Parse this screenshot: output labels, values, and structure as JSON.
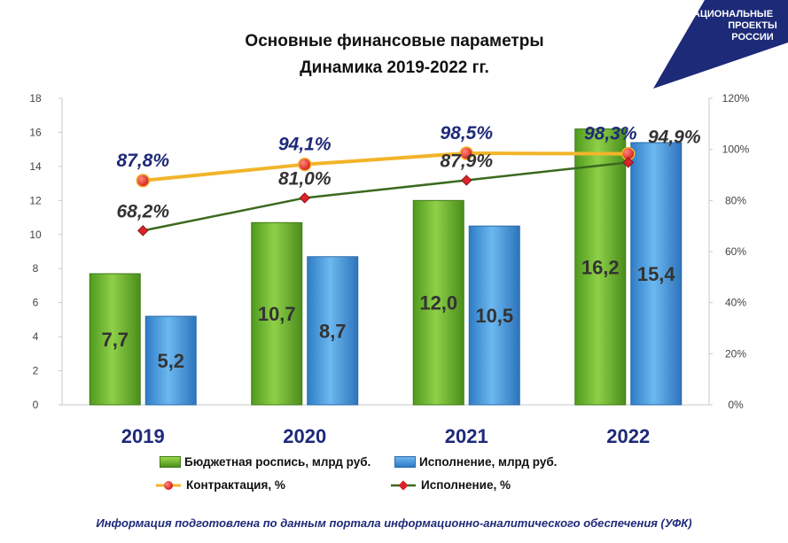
{
  "header": {
    "title_line1": "Основные финансовые параметры",
    "title_line2": "Динамика 2019-2022 гг."
  },
  "logo": {
    "line1": "НАЦИОНАЛЬНЫЕ",
    "line2": "ПРОЕКТЫ",
    "line3": "РОССИИ",
    "color": "#1c2a78"
  },
  "chart_data": {
    "type": "bar",
    "categories": [
      "2019",
      "2020",
      "2021",
      "2022"
    ],
    "left_axis": {
      "min": 0,
      "max": 18,
      "step": 2,
      "ticks": [
        "0",
        "2",
        "4",
        "6",
        "8",
        "10",
        "12",
        "14",
        "16",
        "18"
      ]
    },
    "right_axis": {
      "min": 0,
      "max": 120,
      "step": 20,
      "ticks": [
        "0%",
        "20%",
        "40%",
        "60%",
        "80%",
        "100%",
        "120%"
      ]
    },
    "bar_series": [
      {
        "name": "Бюджетная роспись, млрд руб.",
        "values": [
          7.7,
          10.7,
          12.0,
          16.2
        ],
        "labels": [
          "7,7",
          "10,7",
          "12,0",
          "16,2"
        ],
        "color": "#6cb52d"
      },
      {
        "name": "Исполнение, млрд руб.",
        "values": [
          5.2,
          8.7,
          10.5,
          15.4
        ],
        "labels": [
          "5,2",
          "8,7",
          "10,5",
          "15,4"
        ],
        "color": "#3d8fd8"
      }
    ],
    "line_series": [
      {
        "name": "Контрактация, %",
        "values": [
          87.8,
          94.1,
          98.5,
          98.3
        ],
        "labels": [
          "87,8%",
          "94,1%",
          "98,5%",
          "98,3%"
        ],
        "color": "#f2b42a",
        "marker_color": "#e8232a"
      },
      {
        "name": "Исполнение, %",
        "values": [
          68.2,
          81.0,
          87.9,
          94.9
        ],
        "labels": [
          "68,2%",
          "81,0%",
          "87,9%",
          "94,9%"
        ],
        "color": "#3a6a1f",
        "marker_color": "#d8242a"
      }
    ],
    "grid": false,
    "legend_position": "bottom"
  },
  "footnote": "Информация подготовлена по данным портала информационно-аналитического обеспечения (УФК)"
}
